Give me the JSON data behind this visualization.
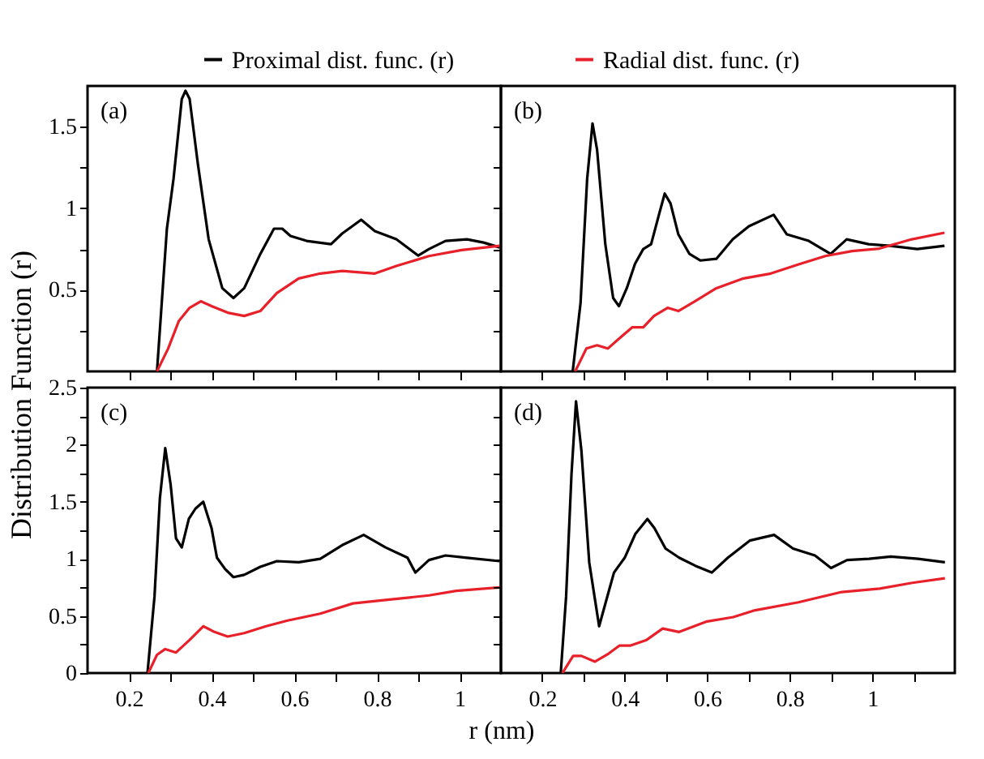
{
  "chart_data": [
    {
      "type": "line",
      "ylabel": "Distribution Function (r)",
      "legend": "top",
      "tick_labels": "y",
      "annotations": [
        "(a)"
      ],
      "xlim": [
        0.1,
        1.1
      ],
      "ylim": [
        0,
        1.75
      ],
      "xticks": [
        {
          "value": 0.2,
          "label": null
        },
        {
          "value": 0.3,
          "label": null
        },
        {
          "value": 0.4,
          "label": null
        },
        {
          "value": 0.5,
          "label": null
        },
        {
          "value": 0.6,
          "label": null
        },
        {
          "value": 0.7,
          "label": null
        },
        {
          "value": 0.8,
          "label": null
        },
        {
          "value": 0.9,
          "label": null
        },
        {
          "value": 1,
          "label": null
        }
      ],
      "yticks": [
        {
          "value": 0.25,
          "label": null
        },
        0.5,
        {
          "value": 0.75,
          "label": null
        },
        1,
        {
          "value": 1.25,
          "label": null
        },
        1.5
      ],
      "series": [
        {
          "name": "Proximal dist. func. (r)",
          "color": "#000000",
          "x": [
            0.268,
            0.292,
            0.308,
            0.328,
            0.337,
            0.347,
            0.367,
            0.393,
            0.426,
            0.453,
            0.479,
            0.518,
            0.551,
            0.571,
            0.591,
            0.63,
            0.689,
            0.716,
            0.762,
            0.795,
            0.847,
            0.9,
            0.926,
            0.966,
            1.018,
            1.058,
            1.097
          ],
          "values": [
            0,
            0.875,
            1.18,
            1.67,
            1.72,
            1.67,
            1.27,
            0.81,
            0.51,
            0.45,
            0.51,
            0.72,
            0.875,
            0.875,
            0.83,
            0.8,
            0.78,
            0.845,
            0.93,
            0.86,
            0.81,
            0.71,
            0.75,
            0.8,
            0.81,
            0.79,
            0.76
          ]
        },
        {
          "name": "Radial dist. func. (r)",
          "color": "#e8202a",
          "x": [
            0.268,
            0.295,
            0.321,
            0.347,
            0.374,
            0.4,
            0.439,
            0.479,
            0.518,
            0.558,
            0.611,
            0.663,
            0.716,
            0.795,
            0.847,
            0.926,
            1.005,
            1.097
          ],
          "values": [
            0,
            0.14,
            0.31,
            0.39,
            0.43,
            0.4,
            0.36,
            0.34,
            0.37,
            0.48,
            0.57,
            0.6,
            0.616,
            0.6,
            0.646,
            0.707,
            0.744,
            0.77
          ]
        }
      ]
    },
    {
      "type": "line",
      "tick_labels": false,
      "annotations": [
        "(b)"
      ],
      "xlim": [
        0.1,
        1.2
      ],
      "ylim": [
        0,
        1.75
      ],
      "xticks": [
        {
          "value": 0.2,
          "label": null
        },
        {
          "value": 0.3,
          "label": null
        },
        {
          "value": 0.4,
          "label": null
        },
        {
          "value": 0.5,
          "label": null
        },
        {
          "value": 0.6,
          "label": null
        },
        {
          "value": 0.7,
          "label": null
        },
        {
          "value": 0.8,
          "label": null
        },
        {
          "value": 0.9,
          "label": null
        },
        {
          "value": 1,
          "label": null
        },
        {
          "value": 1.1,
          "label": null
        }
      ],
      "yticks": [
        {
          "value": 0.25,
          "label": null
        },
        {
          "value": 0.5,
          "label": null
        },
        {
          "value": 0.75,
          "label": null
        },
        {
          "value": 1,
          "label": null
        },
        {
          "value": 1.25,
          "label": null
        },
        {
          "value": 1.5,
          "label": null
        }
      ],
      "series": [
        {
          "color": "#000000",
          "x": [
            0.274,
            0.293,
            0.309,
            0.322,
            0.333,
            0.353,
            0.372,
            0.386,
            0.405,
            0.425,
            0.445,
            0.464,
            0.484,
            0.497,
            0.511,
            0.53,
            0.557,
            0.583,
            0.622,
            0.662,
            0.701,
            0.761,
            0.793,
            0.846,
            0.899,
            0.938,
            0.991,
            1.043,
            1.109,
            1.175
          ],
          "values": [
            0,
            0.42,
            1.18,
            1.52,
            1.36,
            0.78,
            0.45,
            0.4,
            0.51,
            0.66,
            0.75,
            0.78,
            0.97,
            1.09,
            1.03,
            0.84,
            0.72,
            0.68,
            0.69,
            0.81,
            0.89,
            0.96,
            0.84,
            0.8,
            0.72,
            0.81,
            0.78,
            0.77,
            0.75,
            0.77
          ]
        },
        {
          "color": "#e8202a",
          "x": [
            0.28,
            0.307,
            0.333,
            0.359,
            0.386,
            0.418,
            0.445,
            0.471,
            0.504,
            0.53,
            0.57,
            0.622,
            0.688,
            0.754,
            0.82,
            0.886,
            0.951,
            1.017,
            1.096,
            1.175
          ],
          "values": [
            0,
            0.14,
            0.16,
            0.14,
            0.2,
            0.27,
            0.27,
            0.34,
            0.39,
            0.37,
            0.43,
            0.51,
            0.57,
            0.6,
            0.655,
            0.707,
            0.738,
            0.753,
            0.81,
            0.85
          ]
        }
      ]
    },
    {
      "type": "line",
      "annotations": [
        "(c)"
      ],
      "xlim": [
        0.1,
        1.1
      ],
      "ylim": [
        0,
        2.5
      ],
      "xticks": [
        0.2,
        {
          "value": 0.3,
          "label": null
        },
        0.4,
        {
          "value": 0.5,
          "label": null
        },
        0.6,
        {
          "value": 0.7,
          "label": null
        },
        0.8,
        {
          "value": 0.9,
          "label": null
        },
        1
      ],
      "yticks": [
        0,
        {
          "value": 0.25,
          "label": null
        },
        0.5,
        {
          "value": 0.75,
          "label": null
        },
        1,
        {
          "value": 1.25,
          "label": null
        },
        1.5,
        {
          "value": 1.75,
          "label": null
        },
        2,
        {
          "value": 2.25,
          "label": null
        },
        2.5
      ],
      "series": [
        {
          "color": "#000000",
          "x": [
            0.245,
            0.262,
            0.275,
            0.288,
            0.301,
            0.314,
            0.328,
            0.345,
            0.361,
            0.38,
            0.4,
            0.413,
            0.433,
            0.453,
            0.479,
            0.518,
            0.558,
            0.611,
            0.663,
            0.716,
            0.768,
            0.821,
            0.874,
            0.893,
            0.926,
            0.966,
            1.018,
            1.097
          ],
          "values": [
            0,
            0.67,
            1.53,
            1.97,
            1.65,
            1.18,
            1.1,
            1.35,
            1.44,
            1.5,
            1.27,
            1.01,
            0.91,
            0.84,
            0.86,
            0.93,
            0.98,
            0.97,
            1,
            1.12,
            1.21,
            1.1,
            1.01,
            0.88,
            0.99,
            1.03,
            1.01,
            0.98
          ]
        },
        {
          "color": "#e8202a",
          "x": [
            0.247,
            0.268,
            0.288,
            0.314,
            0.347,
            0.38,
            0.407,
            0.439,
            0.479,
            0.532,
            0.584,
            0.663,
            0.742,
            0.821,
            0.926,
            0.992,
            1.097
          ],
          "values": [
            0,
            0.16,
            0.21,
            0.18,
            0.29,
            0.41,
            0.36,
            0.32,
            0.35,
            0.41,
            0.46,
            0.52,
            0.61,
            0.64,
            0.68,
            0.72,
            0.75
          ]
        }
      ]
    },
    {
      "type": "line",
      "xlabel": "r (nm)",
      "tick_labels": "x",
      "annotations": [
        "(d)"
      ],
      "xlim": [
        0.1,
        1.2
      ],
      "ylim": [
        0,
        2.5
      ],
      "xticks": [
        0.2,
        {
          "value": 0.3,
          "label": null
        },
        0.4,
        {
          "value": 0.5,
          "label": null
        },
        0.6,
        {
          "value": 0.7,
          "label": null
        },
        0.8,
        {
          "value": 0.9,
          "label": null
        },
        1,
        {
          "value": 1.1,
          "label": null
        }
      ],
      "yticks": [
        {
          "value": 0.25,
          "label": null
        },
        {
          "value": 0.5,
          "label": null
        },
        {
          "value": 0.75,
          "label": null
        },
        {
          "value": 1,
          "label": null
        },
        {
          "value": 1.25,
          "label": null
        },
        {
          "value": 1.5,
          "label": null
        },
        {
          "value": 1.75,
          "label": null
        },
        {
          "value": 2,
          "label": null
        },
        {
          "value": 2.25,
          "label": null
        }
      ],
      "series": [
        {
          "color": "#000000",
          "x": [
            0.245,
            0.258,
            0.271,
            0.282,
            0.295,
            0.314,
            0.338,
            0.354,
            0.374,
            0.4,
            0.426,
            0.455,
            0.472,
            0.499,
            0.532,
            0.571,
            0.611,
            0.65,
            0.703,
            0.762,
            0.808,
            0.861,
            0.9,
            0.939,
            0.992,
            1.045,
            1.111,
            1.176
          ],
          "values": [
            0,
            0.67,
            1.74,
            2.38,
            1.95,
            0.97,
            0.41,
            0.62,
            0.88,
            1.01,
            1.22,
            1.35,
            1.27,
            1.09,
            1.01,
            0.94,
            0.88,
            1.01,
            1.16,
            1.21,
            1.09,
            1.03,
            0.92,
            0.99,
            1,
            1.02,
            1,
            0.97
          ]
        },
        {
          "color": "#e8202a",
          "x": [
            0.249,
            0.275,
            0.295,
            0.328,
            0.361,
            0.387,
            0.413,
            0.453,
            0.492,
            0.532,
            0.597,
            0.663,
            0.716,
            0.821,
            0.926,
            1.018,
            1.097,
            1.176
          ],
          "values": [
            0,
            0.15,
            0.15,
            0.1,
            0.17,
            0.24,
            0.24,
            0.29,
            0.39,
            0.36,
            0.45,
            0.49,
            0.55,
            0.62,
            0.71,
            0.74,
            0.79,
            0.83
          ]
        }
      ]
    }
  ]
}
